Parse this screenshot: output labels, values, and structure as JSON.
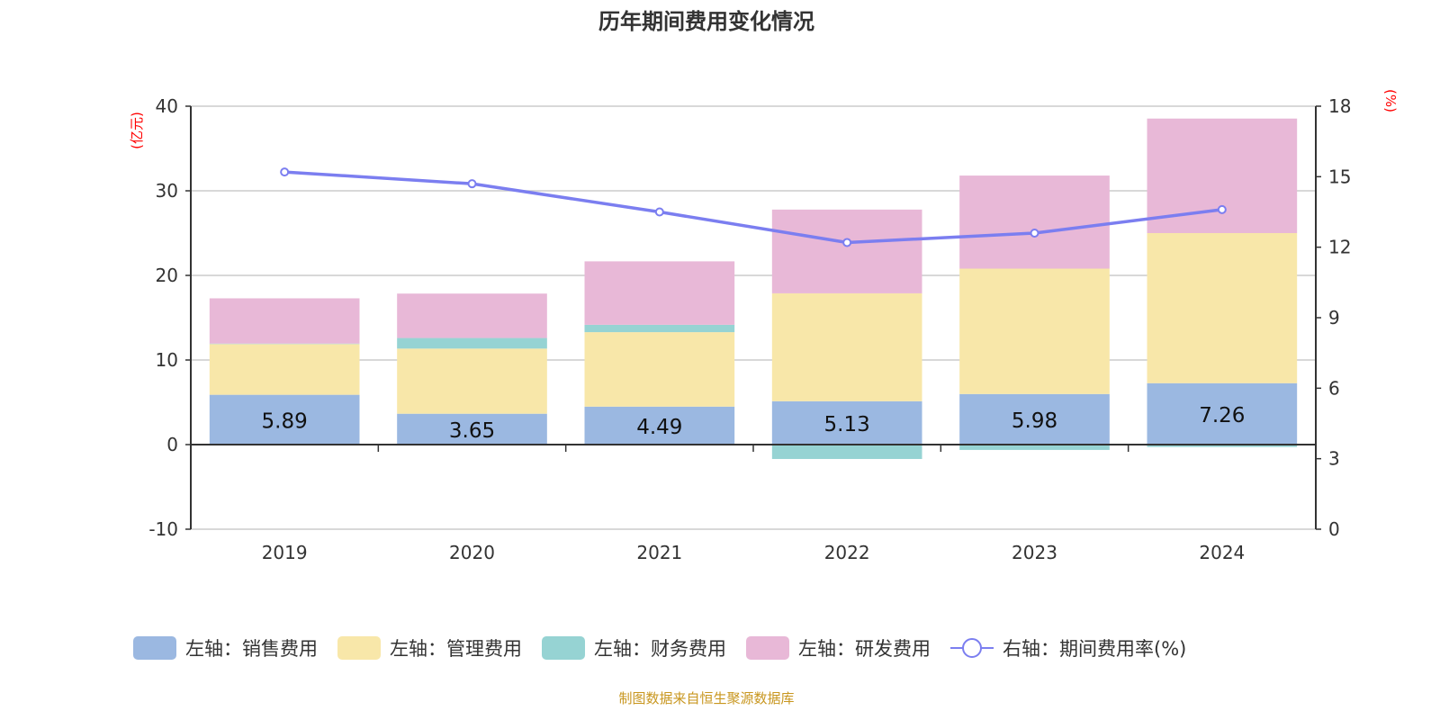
{
  "chart_data": {
    "type": "bar",
    "title": "历年期间费用变化情况",
    "left_axis": {
      "unit": "(亿元)",
      "range": [
        -10,
        40
      ],
      "ticks": [
        -10,
        0,
        10,
        20,
        30,
        40
      ],
      "color": "#ff0000"
    },
    "right_axis": {
      "unit": "(%)",
      "range": [
        0,
        18
      ],
      "ticks": [
        0,
        3,
        6,
        9,
        12,
        15,
        18
      ],
      "color": "#ff0000"
    },
    "grid": true,
    "legend_position": "bottom",
    "categories": [
      "2019",
      "2020",
      "2021",
      "2022",
      "2023",
      "2024"
    ],
    "series": [
      {
        "name": "左轴：销售费用",
        "type": "bar",
        "axis": "left",
        "color": "#9bb8e1",
        "values": [
          5.89,
          3.65,
          4.49,
          5.13,
          5.98,
          7.26
        ],
        "labels": [
          "5.89",
          "3.65",
          "4.49",
          "5.13",
          "5.98",
          "7.26"
        ]
      },
      {
        "name": "左轴：管理费用",
        "type": "bar",
        "axis": "left",
        "color": "#f8e7a9",
        "values": [
          6.0,
          7.7,
          8.8,
          12.75,
          14.82,
          17.74
        ]
      },
      {
        "name": "左轴：财务费用",
        "type": "bar",
        "axis": "left",
        "color": "#96d3d3",
        "values": [
          0.05,
          1.25,
          0.87,
          -1.7,
          -0.63,
          -0.28
        ]
      },
      {
        "name": "左轴：研发费用",
        "type": "bar",
        "axis": "left",
        "color": "#e8b8d7",
        "values": [
          5.35,
          5.25,
          7.5,
          9.9,
          11.0,
          13.54
        ]
      },
      {
        "name": "右轴：期间费用率(%)",
        "type": "line",
        "axis": "right",
        "color": "#7b7ef0",
        "values": [
          15.2,
          14.7,
          13.5,
          12.2,
          12.6,
          13.6
        ]
      }
    ]
  },
  "footer": {
    "source": "制图数据来自恒生聚源数据库"
  }
}
